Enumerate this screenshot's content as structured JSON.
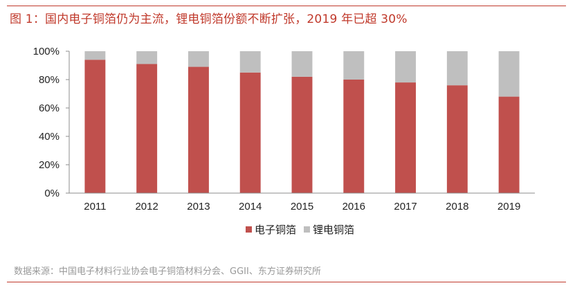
{
  "header": {
    "title": "图 1：国内电子铜箔仍为主流，锂电铜箔份额不断扩张，2019 年已超 30%"
  },
  "footer": {
    "source": "数据来源：中国电子材料行业协会电子铜箔材料分会、GGII、东方证券研究所"
  },
  "colors": {
    "accent": "#c0392b",
    "electronic": "#c0504d",
    "lithium": "#bfbfbf"
  },
  "chart_data": {
    "type": "bar",
    "stacked": true,
    "categories": [
      "2011",
      "2012",
      "2013",
      "2014",
      "2015",
      "2016",
      "2017",
      "2018",
      "2019"
    ],
    "series": [
      {
        "name": "电子铜箔",
        "values": [
          94,
          91,
          89,
          85,
          82,
          80,
          78,
          76,
          68
        ]
      },
      {
        "name": "锂电铜箔",
        "values": [
          6,
          9,
          11,
          15,
          18,
          20,
          22,
          24,
          32
        ]
      }
    ],
    "yticks": [
      "0%",
      "20%",
      "40%",
      "60%",
      "80%",
      "100%"
    ],
    "ylim": [
      0,
      100
    ],
    "grid": false,
    "legend_position": "bottom-center"
  }
}
